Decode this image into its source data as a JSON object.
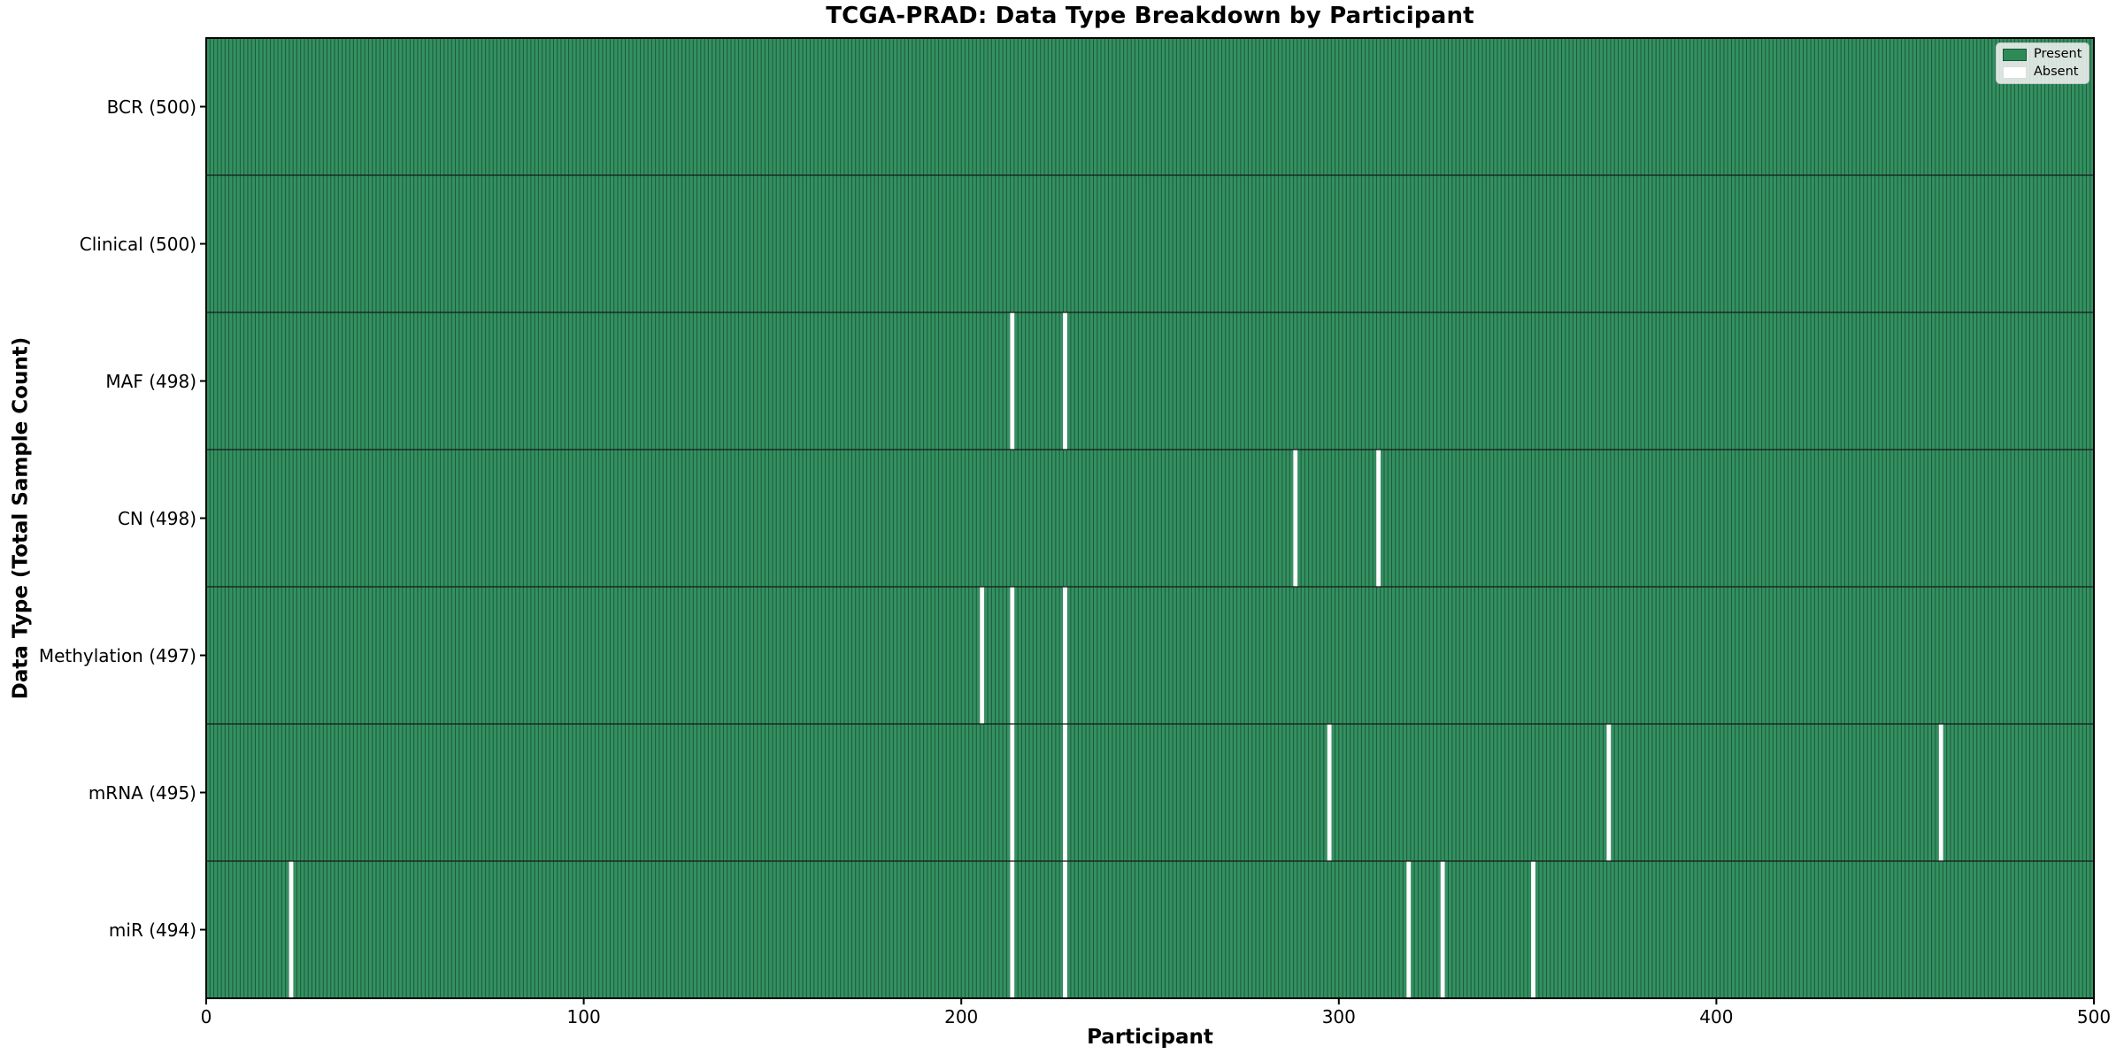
{
  "title": "TCGA-PRAD: Data Type Breakdown by Participant",
  "xlabel": "Participant",
  "ylabel": "Data Type (Total Sample Count)",
  "legend": {
    "items": [
      {
        "label": "Present",
        "color": "#2e8b57",
        "edge": "rgba(0,0,0,0.4)"
      },
      {
        "label": "Absent",
        "color": "#ffffff",
        "edge": "#dddddd"
      }
    ]
  },
  "chart_data": {
    "type": "heatmap",
    "title": "TCGA-PRAD: Data Type Breakdown by Participant",
    "xlabel": "Participant",
    "ylabel": "Data Type (Total Sample Count)",
    "x_axis": {
      "min": 0,
      "max": 500,
      "ticks": [
        0,
        100,
        200,
        300,
        400,
        500
      ]
    },
    "n_participants": 500,
    "legend_position": "upper right",
    "colors": {
      "present_fill": "#349161",
      "bar_edge_stripe": "#1b5839",
      "absent_fill": "#ffffff",
      "row_divider": "#1a1a1a",
      "spine": "#000000"
    },
    "rows": [
      {
        "name": "BCR",
        "label": "BCR (500)",
        "total": 500,
        "absent_participants": []
      },
      {
        "name": "Clinical",
        "label": "Clinical (500)",
        "total": 500,
        "absent_participants": []
      },
      {
        "name": "MAF",
        "label": "MAF (498)",
        "total": 498,
        "absent_participants": [
          213,
          227
        ]
      },
      {
        "name": "CN",
        "label": "CN (498)",
        "total": 498,
        "absent_participants": [
          288,
          310
        ]
      },
      {
        "name": "Methylation",
        "label": "Methylation (497)",
        "total": 497,
        "absent_participants": [
          205,
          213,
          227
        ]
      },
      {
        "name": "mRNA",
        "label": "mRNA (495)",
        "total": 495,
        "absent_participants": [
          213,
          227,
          297,
          371,
          459
        ]
      },
      {
        "name": "miR",
        "label": "miR (494)",
        "total": 494,
        "absent_participants": [
          22,
          213,
          227,
          318,
          327,
          351
        ]
      }
    ]
  }
}
